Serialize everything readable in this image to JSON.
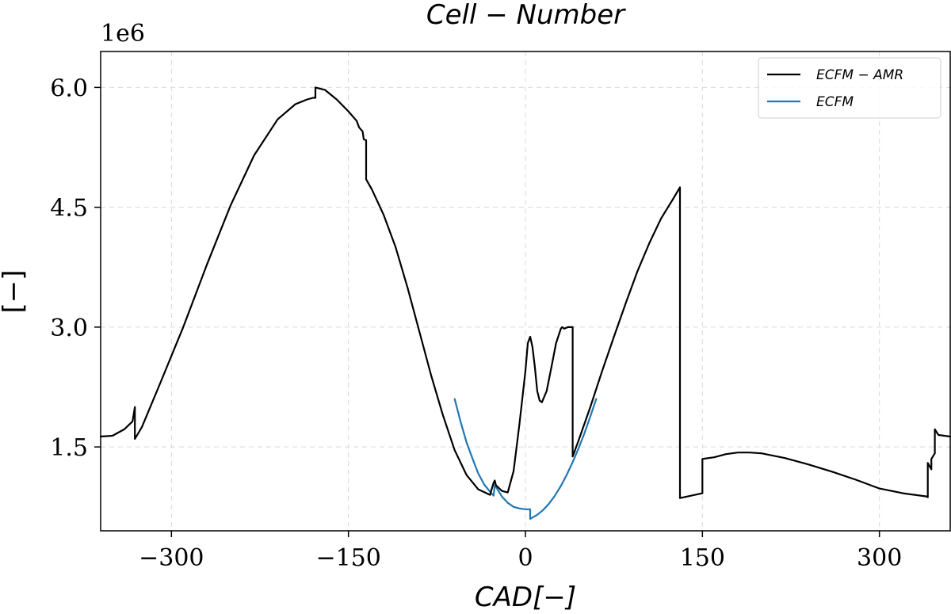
{
  "chart_data": {
    "type": "line",
    "title": "Cell − Number",
    "xlabel": "CAD[−]",
    "ylabel": "[−]",
    "y_offset_label": "1e6",
    "xlim": [
      -360,
      360
    ],
    "ylim": [
      0.45,
      6.45
    ],
    "x_ticks": [
      -300,
      -150,
      0,
      150,
      300
    ],
    "x_tick_labels": [
      "−300",
      "−150",
      "0",
      "150",
      "300"
    ],
    "y_ticks": [
      1.5,
      3.0,
      4.5,
      6.0
    ],
    "y_tick_labels": [
      "1.5",
      "3.0",
      "4.5",
      "6.0"
    ],
    "grid": true,
    "legend_position": "top-right",
    "series": [
      {
        "name": "ECFM − AMR",
        "color": "#000000",
        "x": [
          -360,
          -350,
          -340,
          -333,
          -331,
          -331,
          -325,
          -310,
          -290,
          -270,
          -250,
          -230,
          -210,
          -195,
          -185,
          -180,
          -178,
          -178,
          -170,
          -160,
          -150,
          -143,
          -141,
          -138,
          -137,
          -135,
          -135,
          -130,
          -120,
          -110,
          -100,
          -90,
          -80,
          -70,
          -60,
          -50,
          -40,
          -30,
          -27,
          -26,
          -25,
          -20,
          -15,
          -10,
          -5,
          0,
          2,
          4,
          6,
          8,
          10,
          12,
          14,
          18,
          22,
          26,
          30,
          31,
          33,
          36,
          39,
          40,
          40,
          45,
          55,
          65,
          75,
          85,
          95,
          105,
          115,
          125,
          131,
          131,
          150,
          150,
          160,
          170,
          180,
          190,
          200,
          220,
          240,
          260,
          280,
          300,
          320,
          340,
          341,
          341,
          344,
          344,
          347,
          347,
          350,
          360
        ],
        "y": [
          1.63,
          1.64,
          1.72,
          1.82,
          2.0,
          1.6,
          1.75,
          2.28,
          3.0,
          3.78,
          4.52,
          5.15,
          5.6,
          5.79,
          5.85,
          5.87,
          5.87,
          6.0,
          5.97,
          5.85,
          5.7,
          5.58,
          5.5,
          5.45,
          5.35,
          5.34,
          4.85,
          4.72,
          4.4,
          4.0,
          3.5,
          2.95,
          2.4,
          1.9,
          1.46,
          1.15,
          0.97,
          0.9,
          1.05,
          1.08,
          1.02,
          0.95,
          0.93,
          1.2,
          1.8,
          2.45,
          2.8,
          2.88,
          2.75,
          2.5,
          2.2,
          2.08,
          2.06,
          2.2,
          2.5,
          2.8,
          2.98,
          3.0,
          2.98,
          3.0,
          3.0,
          3.0,
          1.38,
          1.58,
          2.0,
          2.45,
          2.88,
          3.3,
          3.7,
          4.05,
          4.36,
          4.6,
          4.75,
          0.86,
          0.92,
          1.35,
          1.37,
          1.41,
          1.43,
          1.43,
          1.42,
          1.36,
          1.28,
          1.19,
          1.09,
          0.98,
          0.92,
          0.88,
          0.87,
          1.3,
          1.22,
          1.35,
          1.42,
          1.72,
          1.65,
          1.63
        ]
      },
      {
        "name": "ECFM",
        "color": "#1f77b4",
        "x": [
          -60,
          -55,
          -50,
          -45,
          -40,
          -35,
          -30,
          -27,
          -26,
          -25,
          -20,
          -15,
          -10,
          -5,
          0,
          4,
          4,
          10,
          15,
          20,
          25,
          30,
          35,
          40,
          45,
          50,
          55,
          60
        ],
        "y": [
          2.1,
          1.82,
          1.56,
          1.36,
          1.17,
          1.03,
          0.94,
          0.89,
          1.02,
          1.0,
          0.88,
          0.8,
          0.75,
          0.73,
          0.72,
          0.72,
          0.6,
          0.65,
          0.71,
          0.79,
          0.89,
          1.01,
          1.15,
          1.31,
          1.48,
          1.67,
          1.88,
          2.1
        ]
      }
    ]
  }
}
